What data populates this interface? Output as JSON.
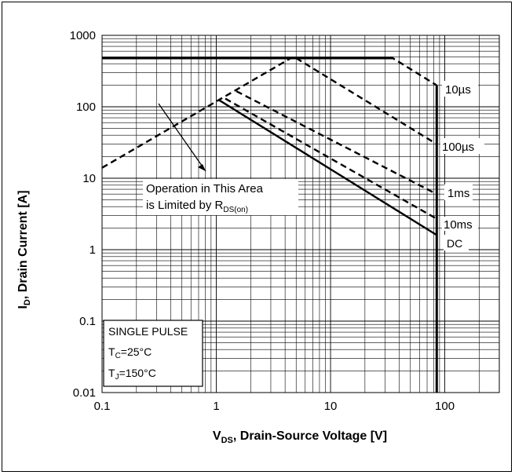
{
  "chart_data": {
    "type": "line",
    "title": "",
    "xlabel": {
      "main": "V",
      "sub": "DS",
      "rest": ", Drain-Source Voltage [V]"
    },
    "ylabel": {
      "main": "I",
      "sub": "D",
      "rest": ", Drain Current [A]"
    },
    "xscale": "log",
    "yscale": "log",
    "xlim": [
      0.1,
      300
    ],
    "ylim": [
      0.01,
      1000
    ],
    "grid": true,
    "x_ticks": [
      "0.1",
      "1",
      "10",
      "100"
    ],
    "y_ticks": [
      "1000",
      "100",
      "10",
      "1",
      "0.1",
      "0.01"
    ],
    "series": [
      {
        "name": "10µs",
        "style": "dashed",
        "x": [
          0.1,
          4.5,
          5,
          35,
          85
        ],
        "y": [
          14,
          480,
          480,
          480,
          200
        ]
      },
      {
        "name": "100µs",
        "style": "dashed",
        "x": [
          5,
          85
        ],
        "y": [
          480,
          30
        ]
      },
      {
        "name": "1ms",
        "style": "dashed",
        "x": [
          1.5,
          85
        ],
        "y": [
          165,
          6
        ]
      },
      {
        "name": "10ms",
        "style": "dashed",
        "x": [
          1.2,
          85
        ],
        "y": [
          130,
          2.7
        ]
      },
      {
        "name": "DC",
        "style": "solid",
        "x": [
          1.05,
          85
        ],
        "y": [
          125,
          1.6
        ]
      },
      {
        "name": "current-limit",
        "style": "solid-thick",
        "x": [
          0.1,
          35
        ],
        "y": [
          480,
          480
        ]
      },
      {
        "name": "voltage-limit",
        "style": "solid-thick",
        "x": [
          85,
          85
        ],
        "y": [
          0.01,
          200
        ]
      }
    ],
    "annotations": {
      "rds_line1": "Operation in This Area",
      "rds_line2_pre": "is Limited by R",
      "rds_line2_sub": "DS(on)",
      "pulse_box": {
        "line1": "SINGLE PULSE",
        "tc_main": "T",
        "tc_sub": "C",
        "tc_rest": "=25°C",
        "tj_main": "T",
        "tj_sub": "J",
        "tj_rest": "=150°C"
      }
    }
  }
}
